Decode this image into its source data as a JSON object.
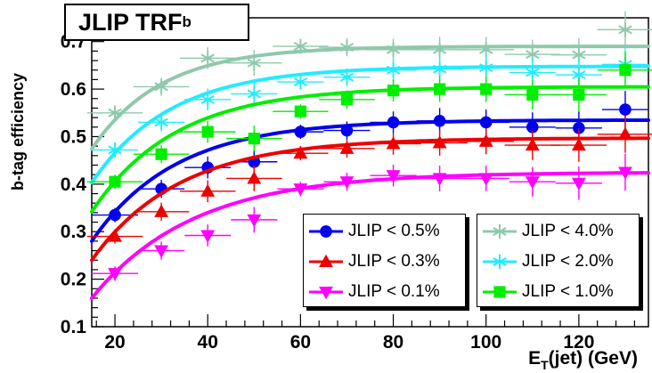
{
  "chart_data": {
    "type": "scatter",
    "title": "JLIP TRF",
    "title_subscript": "b",
    "xlabel": "E",
    "xlabel_sub": "T",
    "xlabel_rest": "(jet) (GeV)",
    "ylabel": "b-tag efficiency",
    "xlim": [
      15,
      135
    ],
    "ylim": [
      0.1,
      0.75
    ],
    "x_ticks": [
      "20",
      "40",
      "60",
      "80",
      "100",
      "120"
    ],
    "y_ticks": [
      "0.1",
      "0.2",
      "0.3",
      "0.4",
      "0.5",
      "0.6",
      "0.7"
    ],
    "x": [
      20,
      30,
      40,
      50,
      60,
      70,
      80,
      90,
      100,
      110,
      120,
      130
    ],
    "series": [
      {
        "name": "JLIP < 0.5%",
        "color": "#0000ee",
        "marker": "circle",
        "values": [
          0.335,
          0.39,
          0.435,
          0.447,
          0.51,
          0.513,
          0.53,
          0.533,
          0.53,
          0.52,
          0.518,
          0.557
        ],
        "fit": {
          "plateau": 0.535,
          "amp": 0.255,
          "tau": 18
        }
      },
      {
        "name": "JLIP < 0.3%",
        "color": "#ee0000",
        "marker": "triangle-up",
        "values": [
          0.29,
          0.342,
          0.385,
          0.412,
          0.465,
          0.475,
          0.485,
          0.487,
          0.49,
          0.482,
          0.482,
          0.505
        ],
        "fit": {
          "plateau": 0.497,
          "amp": 0.257,
          "tau": 19
        }
      },
      {
        "name": "JLIP < 0.1%",
        "color": "#ff00ff",
        "marker": "triangle-down",
        "values": [
          0.212,
          0.26,
          0.292,
          0.325,
          0.39,
          0.405,
          0.418,
          0.412,
          0.412,
          0.405,
          0.402,
          0.425
        ],
        "fit": {
          "plateau": 0.425,
          "amp": 0.265,
          "tau": 22
        }
      },
      {
        "name": "JLIP < 4.0%",
        "color": "#8fc9ac",
        "marker": "star",
        "values": [
          0.55,
          0.605,
          0.665,
          0.655,
          0.69,
          0.688,
          0.683,
          0.683,
          0.683,
          0.673,
          0.672,
          0.725
        ],
        "fit": {
          "plateau": 0.69,
          "amp": 0.216,
          "tau": 15
        }
      },
      {
        "name": "JLIP < 2.0%",
        "color": "#22ecff",
        "marker": "star",
        "values": [
          0.472,
          0.53,
          0.578,
          0.59,
          0.615,
          0.625,
          0.64,
          0.642,
          0.645,
          0.635,
          0.63,
          0.652
        ],
        "fit": {
          "plateau": 0.648,
          "amp": 0.245,
          "tau": 17
        }
      },
      {
        "name": "JLIP < 1.0%",
        "color": "#00ee00",
        "marker": "square",
        "values": [
          0.405,
          0.463,
          0.51,
          0.496,
          0.553,
          0.578,
          0.597,
          0.6,
          0.6,
          0.588,
          0.588,
          0.64
        ],
        "fit": {
          "plateau": 0.605,
          "amp": 0.263,
          "tau": 18
        }
      }
    ],
    "legend": [
      {
        "placement": "bottom-center",
        "entries": [
          "JLIP < 0.5%",
          "JLIP < 0.3%",
          "JLIP < 0.1%"
        ]
      },
      {
        "placement": "bottom-right",
        "entries": [
          "JLIP < 4.0%",
          "JLIP < 2.0%",
          "JLIP < 1.0%"
        ]
      }
    ],
    "grid": false,
    "error_bars": true
  }
}
